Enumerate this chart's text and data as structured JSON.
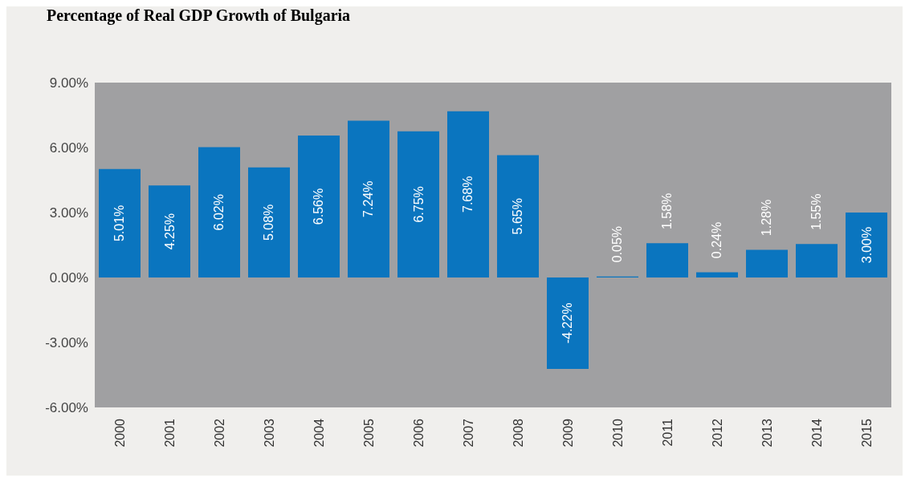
{
  "chart_data": {
    "type": "bar",
    "title": "Percentage of Real GDP Growth of Bulgaria",
    "categories": [
      "2000",
      "2001",
      "2002",
      "2003",
      "2004",
      "2005",
      "2006",
      "2007",
      "2008",
      "2009",
      "2010",
      "2011",
      "2012",
      "2013",
      "2014",
      "2015"
    ],
    "values": [
      5.01,
      4.25,
      6.02,
      5.08,
      6.56,
      7.24,
      6.75,
      7.68,
      5.65,
      -4.22,
      0.05,
      1.58,
      0.24,
      1.28,
      1.55,
      3.0
    ],
    "value_labels": [
      "5.01%",
      "4.25%",
      "6.02%",
      "5.08%",
      "6.56%",
      "7.24%",
      "6.75%",
      "7.68%",
      "5.65%",
      "-4.22%",
      "0.05%",
      "1.58%",
      "0.24%",
      "1.28%",
      "1.55%",
      "3.00%"
    ],
    "color": "#0a75bf",
    "ylim": [
      -6,
      9
    ],
    "yticks": [
      {
        "value": -6,
        "label": "-6.00%"
      },
      {
        "value": -3,
        "label": "-3.00%"
      },
      {
        "value": 0,
        "label": "0.00%"
      },
      {
        "value": 3,
        "label": "3.00%"
      },
      {
        "value": 6,
        "label": "6.00%"
      },
      {
        "value": 9,
        "label": "9.00%"
      }
    ],
    "grid": false,
    "legend": false
  }
}
